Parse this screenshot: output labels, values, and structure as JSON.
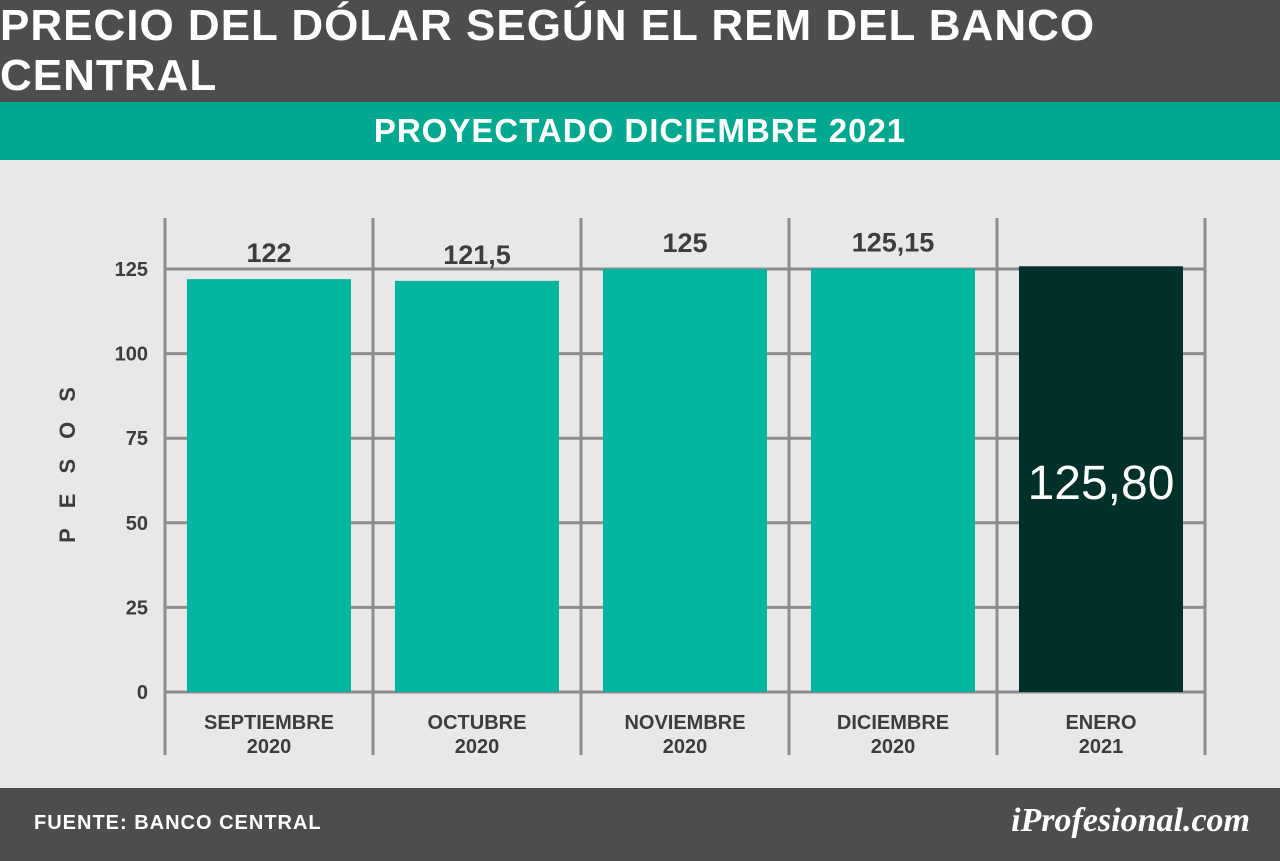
{
  "header": {
    "title": "PRECIO DEL DÓLAR SEGÚN EL REM DEL BANCO CENTRAL",
    "subtitle": "PROYECTADO DICIEMBRE 2021"
  },
  "footer": {
    "source": "FUENTE: BANCO CENTRAL",
    "logo": "iProfesional.com"
  },
  "colors": {
    "header_bg": "#4d4d4d",
    "subtitle_bg": "#00a88f",
    "bar": "#00b5a0",
    "highlight_bar": "#00302a",
    "background": "#e8e8e8"
  },
  "chart_data": {
    "type": "bar",
    "title": "PRECIO DEL DÓLAR SEGÚN EL REM DEL BANCO CENTRAL",
    "subtitle": "PROYECTADO DICIEMBRE 2021",
    "ylabel": "PESOS",
    "xlabel": "",
    "ylim": [
      0,
      125
    ],
    "yticks": [
      0,
      25,
      50,
      75,
      100,
      125
    ],
    "grid": true,
    "categories": [
      [
        "SEPTIEMBRE",
        "2020"
      ],
      [
        "OCTUBRE",
        "2020"
      ],
      [
        "NOVIEMBRE",
        "2020"
      ],
      [
        "DICIEMBRE",
        "2020"
      ],
      [
        "ENERO",
        "2021"
      ]
    ],
    "values": [
      122,
      121.5,
      125,
      125.15,
      125.8
    ],
    "value_labels": [
      "122",
      "121,5",
      "125",
      "125,15",
      "125,80"
    ],
    "highlight_index": 4
  }
}
